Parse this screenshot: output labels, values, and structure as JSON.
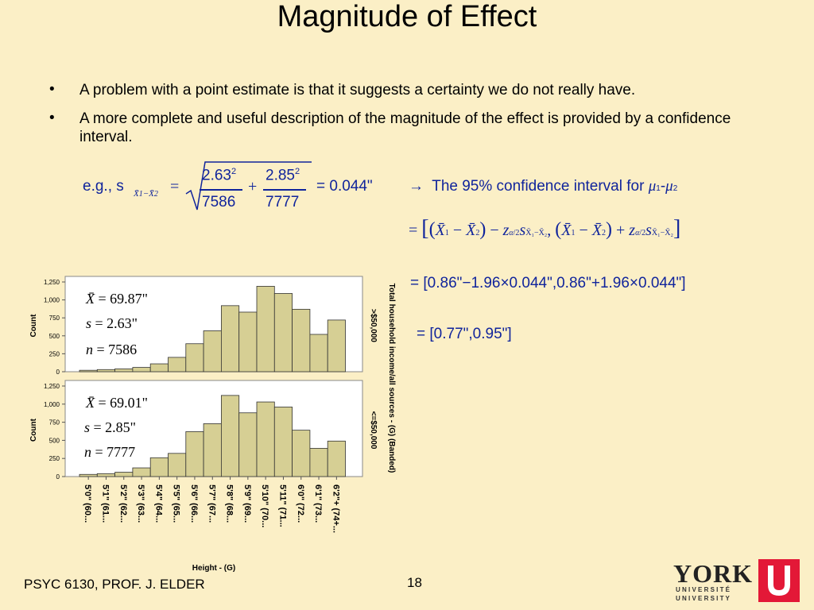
{
  "slide": {
    "title": "Magnitude of Effect",
    "bullets": [
      "A problem with a point estimate is that it suggests a certainty we do not really have.",
      "A more complete and useful description of the magnitude of the effect is provided by a confidence interval."
    ],
    "bullet_symbol": "•",
    "formula": {
      "eg_prefix": "e.g., s",
      "sd1_sq": "2.63",
      "n1": "7586",
      "sd2_sq": "2.85",
      "n2": "7777",
      "exp": "2",
      "result": "= 0.044\"",
      "ci_text": "The 95% confidence interval for",
      "mu1": "μ",
      "mu2": "μ",
      "step1_result": "[0.86\"−1.96×0.044\",0.86\"+1.96×0.044\"]",
      "step2_result": "[0.77\",0.95\"]"
    },
    "footer_left": "PSYC 6130, PROF. J. ELDER",
    "page_number": "18",
    "logo_text": "YORK",
    "logo_sub1": "U N I V E R S I T É",
    "logo_sub2": "U N I V E R S I T Y"
  },
  "chart_data": [
    {
      "type": "bar",
      "panel": ">$50,000",
      "categories": [
        "5'0\" (60...",
        "5'1\" (61...",
        "5'2\" (62...",
        "5'3\" (63...",
        "5'4\" (64...",
        "5'5\" (65...",
        "5'6\" (66...",
        "5'7\" (67...",
        "5'8\" (68...",
        "5'9\" (69...",
        "5'10\" (70...",
        "5'11\" (71...",
        "6'0\" (72...",
        "6'1\" (73...",
        "6'2\"+ (74+..."
      ],
      "values": [
        20,
        30,
        40,
        60,
        110,
        200,
        390,
        570,
        920,
        830,
        1190,
        1090,
        870,
        520,
        720
      ],
      "ylim": [
        0,
        1250
      ],
      "yticks": [
        "0",
        "250",
        "500",
        "750",
        "1,000",
        "1,250"
      ],
      "ylabel": "Count",
      "stats": {
        "mean": "69.87\"",
        "s": "2.63\"",
        "n": "7586"
      }
    },
    {
      "type": "bar",
      "panel": "<=$50,000",
      "categories": [
        "5'0\" (60...",
        "5'1\" (61...",
        "5'2\" (62...",
        "5'3\" (63...",
        "5'4\" (64...",
        "5'5\" (65...",
        "5'6\" (66...",
        "5'7\" (67...",
        "5'8\" (68...",
        "5'9\" (69...",
        "5'10\" (70...",
        "5'11\" (71...",
        "6'0\" (72...",
        "6'1\" (73...",
        "6'2\"+ (74+..."
      ],
      "values": [
        30,
        40,
        60,
        120,
        260,
        320,
        620,
        730,
        1120,
        880,
        1030,
        960,
        640,
        390,
        490
      ],
      "ylim": [
        0,
        1250
      ],
      "yticks": [
        "0",
        "250",
        "500",
        "750",
        "1,000",
        "1,250"
      ],
      "ylabel": "Count",
      "stats": {
        "mean": "69.01\"",
        "s": "2.85\"",
        "n": "7777"
      }
    },
    {
      "xlabel": "Height - (G)",
      "right_label": "Total household income/all sources - (G) (Banded)"
    }
  ]
}
